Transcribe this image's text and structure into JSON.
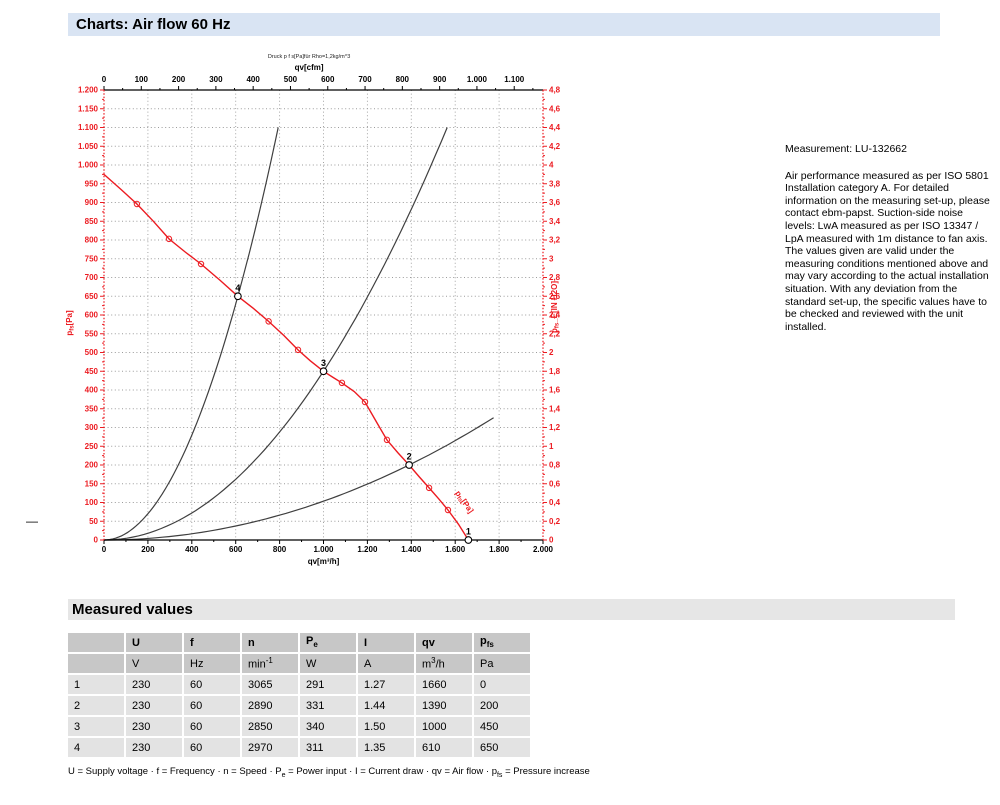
{
  "page": {
    "title": "Charts: Air flow 60 Hz",
    "dash": "—"
  },
  "measurement": {
    "label": "Measurement: LU-132662",
    "note": "Air performance measured as per ISO 5801 Installation category A. For detailed information on the measuring set-up, please contact ebm-papst. Suction-side noise levels: LwA measured as per ISO 13347 / LpA measured with 1m distance to fan axis. The values given are valid under the measuring conditions mentioned above and may vary according to the actual installation situation. With any deviation from the standard set-up, the specific values have to be checked and reviewed with the unit installed."
  },
  "chart_data": {
    "type": "line",
    "pressure_note_small": "Druck p f s[Pa]für Rho=1,2kg/m^3",
    "colors": {
      "red": "#ec1b21",
      "curve_black": "#3f3f3f",
      "grid": "#9b9b9b"
    },
    "axes": {
      "top": {
        "label": "qv[cfm]",
        "min": 0,
        "max": 1177,
        "tick_step": 100,
        "minor_step": 50,
        "cfm_to_m3h": 1.69901
      },
      "bottom": {
        "label": "qv[m³/h]",
        "min": 0,
        "max": 2000,
        "tick_step": 200,
        "minor_step": 100
      },
      "left": {
        "label_base": "p",
        "label_sub": "fs",
        "label_rest": "[Pa]",
        "min": 0,
        "max": 1200,
        "tick_step": 50,
        "minor_step": 25
      },
      "right": {
        "label_base": "p",
        "label_sub": "fs",
        "label_rest": "_E[IN H2O]",
        "min": 0,
        "max": 4.8,
        "tick_step": 0.2,
        "minor_step": 0.1
      }
    },
    "grid": {
      "x_step_m3h": 200,
      "y_step_pa": 50
    },
    "fan_curve": {
      "points": [
        [
          0,
          975
        ],
        [
          75,
          936
        ],
        [
          150,
          896
        ],
        [
          225,
          850
        ],
        [
          296,
          803
        ],
        [
          370,
          768
        ],
        [
          442,
          736
        ],
        [
          530,
          692
        ],
        [
          610,
          650
        ],
        [
          680,
          618
        ],
        [
          750,
          583
        ],
        [
          820,
          545
        ],
        [
          884,
          507
        ],
        [
          940,
          478
        ],
        [
          1000,
          450
        ],
        [
          1045,
          433
        ],
        [
          1084,
          419
        ],
        [
          1140,
          396
        ],
        [
          1189,
          368
        ],
        [
          1240,
          316
        ],
        [
          1289,
          267
        ],
        [
          1340,
          232
        ],
        [
          1390,
          200
        ],
        [
          1437,
          168
        ],
        [
          1481,
          139
        ],
        [
          1525,
          110
        ],
        [
          1567,
          80
        ],
        [
          1615,
          42
        ],
        [
          1660,
          0
        ]
      ],
      "markers": [
        [
          150,
          896
        ],
        [
          296,
          803
        ],
        [
          442,
          736
        ],
        [
          750,
          583
        ],
        [
          884,
          507
        ],
        [
          1084,
          419
        ],
        [
          1189,
          368
        ],
        [
          1289,
          267
        ],
        [
          1481,
          139
        ],
        [
          1567,
          80
        ]
      ]
    },
    "operating_points": [
      {
        "label": "1",
        "qv": 1660,
        "pfs": 0
      },
      {
        "label": "2",
        "qv": 1390,
        "pfs": 200
      },
      {
        "label": "3",
        "qv": 1000,
        "pfs": 450
      },
      {
        "label": "4",
        "qv": 610,
        "pfs": 650
      }
    ],
    "system_curves": [
      {
        "through_qv": 610,
        "through_pfs": 650,
        "clip_pfs": 1100
      },
      {
        "through_qv": 1000,
        "through_pfs": 450,
        "clip_pfs": 1100
      },
      {
        "through_qv": 1390,
        "through_pfs": 200,
        "clip_qv": 1775
      }
    ],
    "inplot_label": {
      "base": "p",
      "sub": "fs",
      "rest": "[Pa]"
    }
  },
  "measured_values": {
    "title": "Measured values",
    "columns": [
      {
        "base": ""
      },
      {
        "base": "U"
      },
      {
        "base": "f"
      },
      {
        "base": "n"
      },
      {
        "base": "P",
        "sub": "e"
      },
      {
        "base": "I"
      },
      {
        "base": "qv"
      },
      {
        "base": "p",
        "sub": "fs"
      }
    ],
    "units": [
      {
        "base": ""
      },
      {
        "base": "V"
      },
      {
        "base": "Hz"
      },
      {
        "base": "min",
        "sup": "-1"
      },
      {
        "base": "W"
      },
      {
        "base": "A"
      },
      {
        "base": "m",
        "sup": "3",
        "post": "/h"
      },
      {
        "base": "Pa"
      }
    ],
    "rows": [
      [
        "1",
        "230",
        "60",
        "3065",
        "291",
        "1.27",
        "1660",
        "0"
      ],
      [
        "2",
        "230",
        "60",
        "2890",
        "331",
        "1.44",
        "1390",
        "200"
      ],
      [
        "3",
        "230",
        "60",
        "2850",
        "340",
        "1.50",
        "1000",
        "450"
      ],
      [
        "4",
        "230",
        "60",
        "2970",
        "311",
        "1.35",
        "610",
        "650"
      ]
    ],
    "footnote_parts": [
      {
        "t": "U = Supply voltage · f = Frequency · n = Speed · P"
      },
      {
        "sub": "e"
      },
      {
        "t": " = Power input · I = Current draw · qv = Air flow · p"
      },
      {
        "sub": "fs"
      },
      {
        "t": " = Pressure increase"
      }
    ]
  }
}
